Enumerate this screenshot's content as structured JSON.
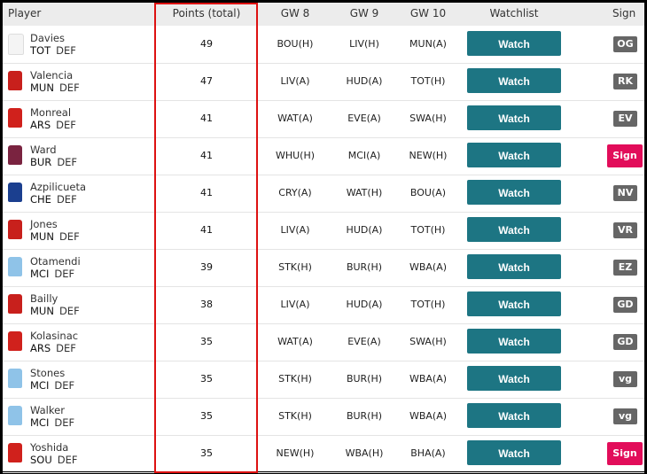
{
  "headers": {
    "player": "Player",
    "points": "Points (total)",
    "gw8": "GW 8",
    "gw9": "GW 9",
    "gw10": "GW 10",
    "watchlist": "Watchlist",
    "sign": "Sign"
  },
  "colors": {
    "watch": "#1d7583",
    "sign": "#e20d5a",
    "badge": "#666666",
    "highlight": "#dd1111"
  },
  "rows": [
    {
      "name": "Davies",
      "team": "TOT",
      "pos": "DEF",
      "points": "49",
      "gw8": "BOU(H)",
      "gw9": "LIV(H)",
      "gw10": "MUN(A)",
      "watch": "Watch",
      "sign": "OG",
      "shirt": "#f4f4f4"
    },
    {
      "name": "Valencia",
      "team": "MUN",
      "pos": "DEF",
      "points": "47",
      "gw8": "LIV(A)",
      "gw9": "HUD(A)",
      "gw10": "TOT(H)",
      "watch": "Watch",
      "sign": "RK",
      "shirt": "#c8201c"
    },
    {
      "name": "Monreal",
      "team": "ARS",
      "pos": "DEF",
      "points": "41",
      "gw8": "WAT(A)",
      "gw9": "EVE(A)",
      "gw10": "SWA(H)",
      "watch": "Watch",
      "sign": "EV",
      "shirt": "#d0211c"
    },
    {
      "name": "Ward",
      "team": "BUR",
      "pos": "DEF",
      "points": "41",
      "gw8": "WHU(H)",
      "gw9": "MCI(A)",
      "gw10": "NEW(H)",
      "watch": "Watch",
      "sign": "Sign",
      "shirt": "#7a2340"
    },
    {
      "name": "Azpilicueta",
      "team": "CHE",
      "pos": "DEF",
      "points": "41",
      "gw8": "CRY(A)",
      "gw9": "WAT(H)",
      "gw10": "BOU(A)",
      "watch": "Watch",
      "sign": "NV",
      "shirt": "#1b3f8f"
    },
    {
      "name": "Jones",
      "team": "MUN",
      "pos": "DEF",
      "points": "41",
      "gw8": "LIV(A)",
      "gw9": "HUD(A)",
      "gw10": "TOT(H)",
      "watch": "Watch",
      "sign": "VR",
      "shirt": "#c8201c"
    },
    {
      "name": "Otamendi",
      "team": "MCI",
      "pos": "DEF",
      "points": "39",
      "gw8": "STK(H)",
      "gw9": "BUR(H)",
      "gw10": "WBA(A)",
      "watch": "Watch",
      "sign": "EZ",
      "shirt": "#8fc3e8"
    },
    {
      "name": "Bailly",
      "team": "MUN",
      "pos": "DEF",
      "points": "38",
      "gw8": "LIV(A)",
      "gw9": "HUD(A)",
      "gw10": "TOT(H)",
      "watch": "Watch",
      "sign": "GD",
      "shirt": "#c8201c"
    },
    {
      "name": "Kolasinac",
      "team": "ARS",
      "pos": "DEF",
      "points": "35",
      "gw8": "WAT(A)",
      "gw9": "EVE(A)",
      "gw10": "SWA(H)",
      "watch": "Watch",
      "sign": "GD",
      "shirt": "#d0211c"
    },
    {
      "name": "Stones",
      "team": "MCI",
      "pos": "DEF",
      "points": "35",
      "gw8": "STK(H)",
      "gw9": "BUR(H)",
      "gw10": "WBA(A)",
      "watch": "Watch",
      "sign": "vg",
      "shirt": "#8fc3e8"
    },
    {
      "name": "Walker",
      "team": "MCI",
      "pos": "DEF",
      "points": "35",
      "gw8": "STK(H)",
      "gw9": "BUR(H)",
      "gw10": "WBA(A)",
      "watch": "Watch",
      "sign": "vg",
      "shirt": "#8fc3e8"
    },
    {
      "name": "Yoshida",
      "team": "SOU",
      "pos": "DEF",
      "points": "35",
      "gw8": "NEW(H)",
      "gw9": "WBA(H)",
      "gw10": "BHA(A)",
      "watch": "Watch",
      "sign": "Sign",
      "shirt": "#d0211c"
    }
  ]
}
